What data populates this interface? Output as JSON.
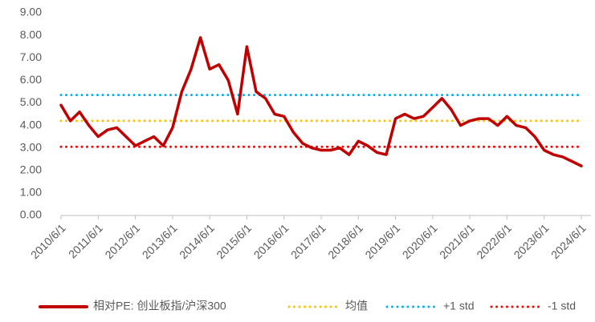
{
  "chart_data": {
    "type": "line",
    "categories": [
      "2010/6/1",
      null,
      null,
      null,
      "2011/6/1",
      null,
      null,
      null,
      "2012/6/1",
      null,
      null,
      null,
      "2013/6/1",
      null,
      null,
      null,
      "2014/6/1",
      null,
      null,
      null,
      "2015/6/1",
      null,
      null,
      null,
      "2016/6/1",
      null,
      null,
      null,
      "2017/6/1",
      null,
      null,
      null,
      "2018/6/1",
      null,
      null,
      null,
      "2019/6/1",
      null,
      null,
      null,
      "2020/6/1",
      null,
      null,
      null,
      "2021/6/1",
      null,
      null,
      null,
      "2022/6/1",
      null,
      null,
      null,
      "2023/6/1",
      null,
      null,
      null,
      "2024/6/1"
    ],
    "series": [
      {
        "name": "相对PE: 创业板指/沪深300",
        "color": "#c00000",
        "style": "solid",
        "values": [
          4.9,
          4.2,
          4.6,
          4.0,
          3.5,
          3.8,
          3.9,
          3.5,
          3.1,
          3.3,
          3.5,
          3.1,
          3.9,
          5.5,
          6.5,
          7.9,
          6.5,
          6.7,
          6.0,
          4.5,
          7.5,
          5.5,
          5.2,
          4.5,
          4.4,
          3.7,
          3.2,
          3.0,
          2.9,
          2.9,
          3.0,
          2.7,
          3.3,
          3.1,
          2.8,
          2.7,
          4.3,
          4.5,
          4.3,
          4.4,
          4.8,
          5.2,
          4.7,
          4.0,
          4.2,
          4.3,
          4.3,
          4.0,
          4.4,
          4.0,
          3.9,
          3.5,
          2.9,
          2.7,
          2.6,
          2.4,
          2.2
        ]
      },
      {
        "name": "均值",
        "color": "#ffc000",
        "style": "dotted",
        "values": [
          4.2,
          4.2,
          4.2,
          4.2,
          4.2,
          4.2,
          4.2,
          4.2,
          4.2,
          4.2,
          4.2,
          4.2,
          4.2,
          4.2,
          4.2,
          4.2,
          4.2,
          4.2,
          4.2,
          4.2,
          4.2,
          4.2,
          4.2,
          4.2,
          4.2,
          4.2,
          4.2,
          4.2,
          4.2,
          4.2,
          4.2,
          4.2,
          4.2,
          4.2,
          4.2,
          4.2,
          4.2,
          4.2,
          4.2,
          4.2,
          4.2,
          4.2,
          4.2,
          4.2,
          4.2,
          4.2,
          4.2,
          4.2,
          4.2,
          4.2,
          4.2,
          4.2,
          4.2,
          4.2,
          4.2,
          4.2,
          4.2
        ]
      },
      {
        "name": "+1 std",
        "color": "#00b0f0",
        "style": "dotted",
        "values": [
          5.35,
          5.35,
          5.35,
          5.35,
          5.35,
          5.35,
          5.35,
          5.35,
          5.35,
          5.35,
          5.35,
          5.35,
          5.35,
          5.35,
          5.35,
          5.35,
          5.35,
          5.35,
          5.35,
          5.35,
          5.35,
          5.35,
          5.35,
          5.35,
          5.35,
          5.35,
          5.35,
          5.35,
          5.35,
          5.35,
          5.35,
          5.35,
          5.35,
          5.35,
          5.35,
          5.35,
          5.35,
          5.35,
          5.35,
          5.35,
          5.35,
          5.35,
          5.35,
          5.35,
          5.35,
          5.35,
          5.35,
          5.35,
          5.35,
          5.35,
          5.35,
          5.35,
          5.35,
          5.35,
          5.35,
          5.35,
          5.35
        ]
      },
      {
        "name": "-1 std",
        "color": "#ff0000",
        "style": "dotted",
        "values": [
          3.05,
          3.05,
          3.05,
          3.05,
          3.05,
          3.05,
          3.05,
          3.05,
          3.05,
          3.05,
          3.05,
          3.05,
          3.05,
          3.05,
          3.05,
          3.05,
          3.05,
          3.05,
          3.05,
          3.05,
          3.05,
          3.05,
          3.05,
          3.05,
          3.05,
          3.05,
          3.05,
          3.05,
          3.05,
          3.05,
          3.05,
          3.05,
          3.05,
          3.05,
          3.05,
          3.05,
          3.05,
          3.05,
          3.05,
          3.05,
          3.05,
          3.05,
          3.05,
          3.05,
          3.05,
          3.05,
          3.05,
          3.05,
          3.05,
          3.05,
          3.05,
          3.05,
          3.05,
          3.05,
          3.05,
          3.05,
          3.05
        ]
      }
    ],
    "ylim": [
      0,
      9
    ],
    "yticks": [
      {
        "value": 0,
        "label": "0.00"
      },
      {
        "value": 1,
        "label": "1.00"
      },
      {
        "value": 2,
        "label": "2.00"
      },
      {
        "value": 3,
        "label": "3.00"
      },
      {
        "value": 4,
        "label": "4.00"
      },
      {
        "value": 5,
        "label": "5.00"
      },
      {
        "value": 6,
        "label": "6.00"
      },
      {
        "value": 7,
        "label": "7.00"
      },
      {
        "value": 8,
        "label": "8.00"
      },
      {
        "value": 9,
        "label": "9.00"
      }
    ],
    "grid": false,
    "legend": "bottom"
  }
}
